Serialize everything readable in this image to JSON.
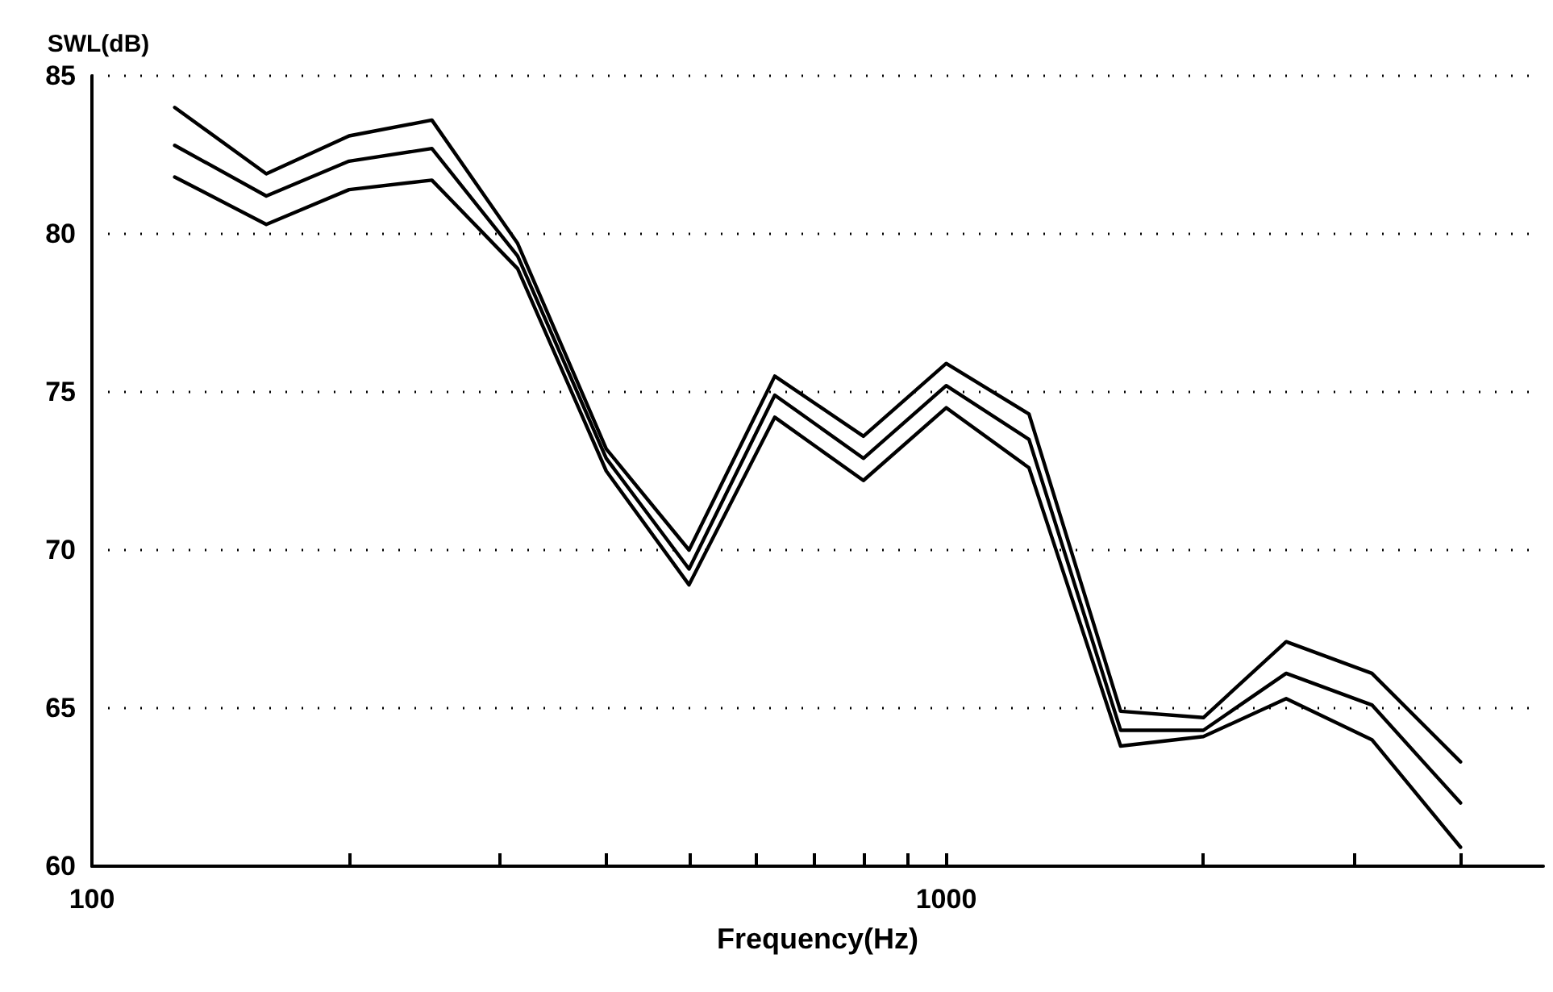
{
  "chart_data": {
    "type": "line",
    "xlabel": "Frequency(Hz)",
    "ylabel": "SWL(dB)",
    "log": "x",
    "grid": "y",
    "marker": "none",
    "line_style": "solid",
    "x": [
      125,
      160,
      200,
      250,
      315,
      400,
      500,
      630,
      800,
      1000,
      1250,
      1600,
      2000,
      2500,
      3150,
      4000
    ],
    "xlim": [
      100,
      5000
    ],
    "xticks": [
      100,
      {
        "value": 200,
        "label": null
      },
      {
        "value": 300,
        "label": null
      },
      {
        "value": 400,
        "label": null
      },
      {
        "value": 500,
        "label": null
      },
      {
        "value": 600,
        "label": null
      },
      {
        "value": 700,
        "label": null
      },
      {
        "value": 800,
        "label": null
      },
      {
        "value": 900,
        "label": null
      },
      1000,
      {
        "value": 2000,
        "label": null
      },
      {
        "value": 3000,
        "label": null
      },
      {
        "value": 4000,
        "label": null
      }
    ],
    "ylim": [
      60,
      85
    ],
    "yticks": [
      60,
      65,
      70,
      75,
      80,
      85
    ],
    "series": [
      {
        "color": "#000000",
        "values": [
          84.0,
          81.9,
          83.1,
          83.6,
          79.7,
          73.2,
          70.0,
          75.5,
          73.6,
          75.9,
          74.3,
          64.9,
          64.7,
          67.1,
          66.1,
          63.3
        ]
      },
      {
        "color": "#000000",
        "values": [
          82.8,
          81.2,
          82.3,
          82.7,
          79.3,
          72.9,
          69.4,
          74.9,
          72.9,
          75.2,
          73.5,
          64.3,
          64.3,
          66.1,
          65.1,
          62.0
        ]
      },
      {
        "color": "#000000",
        "values": [
          81.8,
          80.3,
          81.4,
          81.7,
          78.9,
          72.5,
          68.9,
          74.2,
          72.2,
          74.5,
          72.6,
          63.8,
          64.1,
          65.3,
          64.0,
          60.6
        ]
      }
    ]
  }
}
